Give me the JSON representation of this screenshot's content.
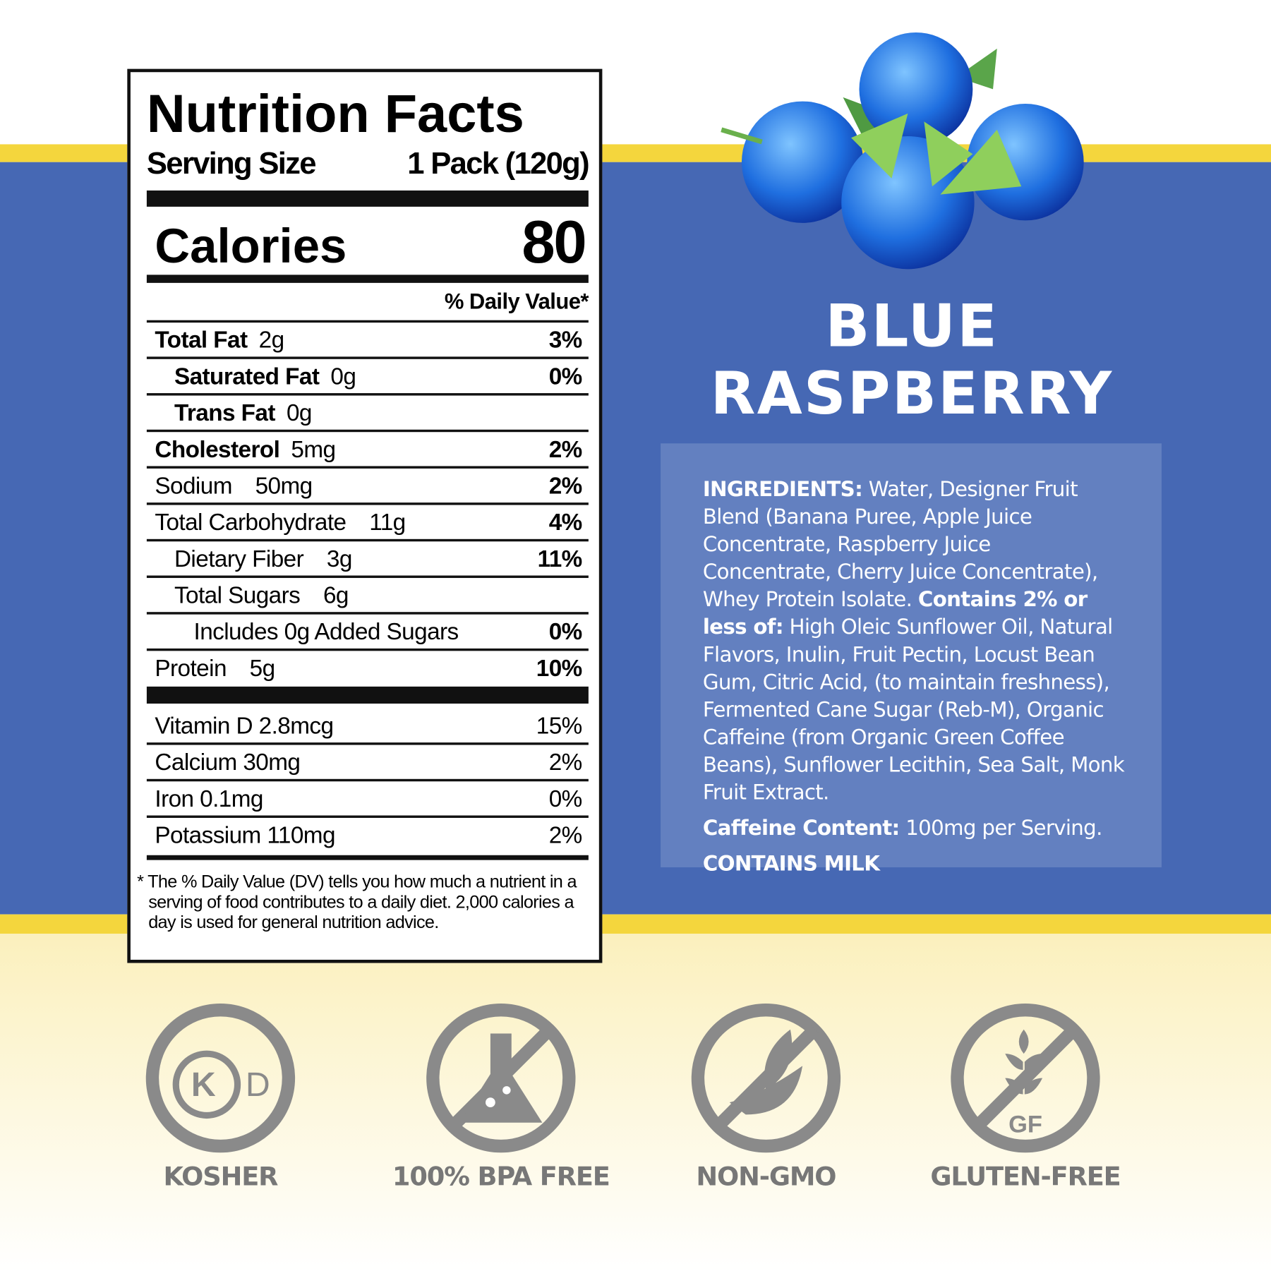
{
  "nutrition": {
    "title": "Nutrition Facts",
    "serving_label": "Serving Size",
    "serving_value": "1 Pack (120g)",
    "calories_label": "Calories",
    "calories_value": 80,
    "dv_header": "% Daily Value*",
    "nutrients": [
      {
        "name": "Total Fat",
        "amount": "2g",
        "dv": "3%",
        "bold": true,
        "level": 0
      },
      {
        "name": "Saturated Fat",
        "amount": "0g",
        "dv": "0%",
        "bold": true,
        "level": 1
      },
      {
        "name": "Trans Fat",
        "amount": "0g",
        "bold": true,
        "level": 1
      },
      {
        "name": "Cholesterol",
        "amount": "5mg",
        "dv": "2%",
        "bold": true,
        "level": 0
      },
      {
        "name": "Sodium",
        "amount": "50mg",
        "dv": "2%",
        "bold": false,
        "level": 0
      },
      {
        "name": "Total Carbohydrate",
        "amount": "11g",
        "dv": "4%",
        "bold": false,
        "level": 0
      },
      {
        "name": "Dietary Fiber",
        "amount": "3g",
        "dv": "11%",
        "bold": false,
        "level": 1
      },
      {
        "name": "Total Sugars",
        "amount": "6g",
        "bold": false,
        "level": 1
      },
      {
        "name": "Includes 0g Added Sugars",
        "dv": "0%",
        "bold": false,
        "level": 2
      },
      {
        "name": "Protein",
        "amount": "5g",
        "dv": "10%",
        "bold": false,
        "level": 0
      }
    ],
    "vitamins": [
      {
        "name": "Vitamin D 2.8mcg",
        "dv": "15%"
      },
      {
        "name": "Calcium 30mg",
        "dv": "2%"
      },
      {
        "name": "Iron 0.1mg",
        "dv": "0%"
      },
      {
        "name": "Potassium 110mg",
        "dv": "2%"
      }
    ],
    "footnote": "* The % Daily Value (DV) tells you how much a nutrient in a serving of food contributes to a daily diet. 2,000 calories a day is used for general nutrition advice."
  },
  "product": {
    "name_line1": "BLUE",
    "name_line2": "RASPBERRY"
  },
  "ingredients": {
    "label": "INGREDIENTS:",
    "text": "Water, Designer Fruit Blend (Banana Puree, Apple Juice Concentrate, Raspberry Juice Concentrate, Cherry Juice Concentrate), Whey Protein Isolate.",
    "contains_label": "Contains 2% or less of:",
    "contains_text": "High Oleic Sunflower Oil, Natural Flavors, Inulin, Fruit Pectin, Locust Bean Gum, Citric Acid, (to maintain freshness), Fermented Cane Sugar (Reb-M), Organic Caffeine (from Organic Green Coffee Beans), Sunflower Lecithin, Sea Salt, Monk Fruit Extract.",
    "caffeine_label": "Caffeine Content:",
    "caffeine_text": "100mg per Serving.",
    "allergen": "CONTAINS MILK"
  },
  "badges": [
    {
      "label": "KOSHER",
      "icon_text": [
        "K",
        "D"
      ]
    },
    {
      "label": "100% BPA FREE"
    },
    {
      "label": "NON-GMO"
    },
    {
      "label": "GLUTEN-FREE",
      "icon_text": [
        "GF"
      ]
    }
  ]
}
